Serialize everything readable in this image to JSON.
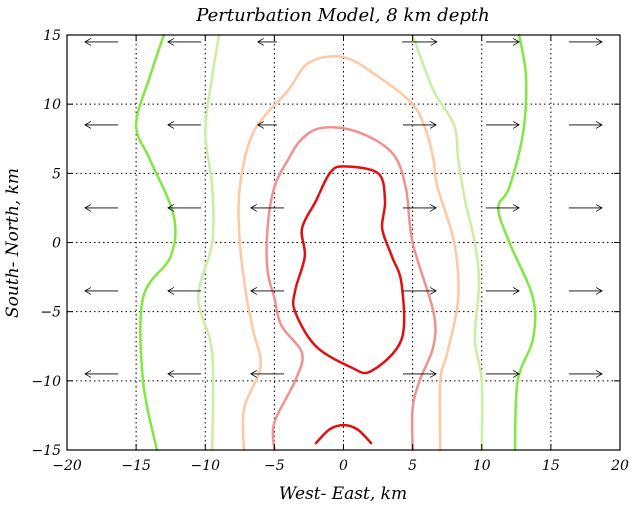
{
  "chart_data": {
    "type": "contour",
    "title": "Perturbation Model, 8 km depth",
    "xlabel": "West- East, km",
    "ylabel": "South- North, km",
    "xlim": [
      -20,
      20
    ],
    "ylim": [
      -15,
      15
    ],
    "xticks": [
      -20,
      -15,
      -10,
      -5,
      0,
      5,
      10,
      15,
      20
    ],
    "yticks": [
      -15,
      -10,
      -5,
      0,
      5,
      10,
      15
    ],
    "xtick_labels": [
      "−20",
      "−15",
      "−10",
      "−5",
      "0",
      "5",
      "10",
      "15",
      "20"
    ],
    "ytick_labels": [
      "−15",
      "−10",
      "−5",
      "0",
      "5",
      "10",
      "15"
    ],
    "grid": true,
    "contours": [
      {
        "color": "#e01010",
        "points": [
          [
            0,
            5.5
          ],
          [
            2.5,
            5
          ],
          [
            3,
            3
          ],
          [
            2.8,
            1
          ],
          [
            3.5,
            -1
          ],
          [
            4.2,
            -3
          ],
          [
            4.2,
            -7
          ],
          [
            2,
            -9.3
          ],
          [
            0.5,
            -9
          ],
          [
            -2,
            -7.5
          ],
          [
            -3.5,
            -5
          ],
          [
            -3.5,
            -3.5
          ],
          [
            -2.8,
            -1
          ],
          [
            -3,
            1
          ],
          [
            -2,
            3
          ],
          [
            -1,
            5
          ],
          [
            0,
            5.5
          ]
        ]
      },
      {
        "color": "#e01010",
        "points": [
          [
            -2,
            -14.5
          ],
          [
            -1,
            -13.5
          ],
          [
            0,
            -13.2
          ],
          [
            1,
            -13.5
          ],
          [
            2,
            -14.5
          ]
        ]
      },
      {
        "color": "#f09090",
        "points": [
          [
            -5,
            -15
          ],
          [
            -5,
            -13
          ],
          [
            -3.5,
            -10
          ],
          [
            -3,
            -8
          ],
          [
            -4.5,
            -6
          ],
          [
            -5,
            -4
          ],
          [
            -5.5,
            -2
          ],
          [
            -5.5,
            1
          ],
          [
            -5,
            4
          ],
          [
            -4,
            6
          ],
          [
            -3,
            7.5
          ],
          [
            -1.5,
            8.3
          ],
          [
            1,
            8
          ],
          [
            3.5,
            6.5
          ],
          [
            4.5,
            4
          ],
          [
            5,
            0
          ],
          [
            6.5,
            -5
          ],
          [
            6.5,
            -7.5
          ],
          [
            5.5,
            -10
          ],
          [
            5,
            -12
          ],
          [
            5,
            -15
          ]
        ]
      },
      {
        "color": "#ffc8a0",
        "points": [
          [
            -7.2,
            -15
          ],
          [
            -7.2,
            -12
          ],
          [
            -6,
            -9
          ],
          [
            -6.5,
            -6.5
          ],
          [
            -7,
            -4
          ],
          [
            -7.5,
            0
          ],
          [
            -7.5,
            4
          ],
          [
            -6.5,
            8
          ],
          [
            -4,
            11
          ],
          [
            -2.5,
            13
          ],
          [
            0,
            13.4
          ],
          [
            2.5,
            12
          ],
          [
            5,
            10
          ],
          [
            6,
            8
          ],
          [
            6.5,
            6
          ],
          [
            6.8,
            4
          ],
          [
            8,
            0
          ],
          [
            8.3,
            -4
          ],
          [
            7.5,
            -8
          ],
          [
            7,
            -10
          ],
          [
            7,
            -15
          ]
        ]
      },
      {
        "color": "#c8f0a0",
        "points": [
          [
            -9,
            15
          ],
          [
            -9.5,
            12
          ],
          [
            -10,
            8
          ],
          [
            -9.5,
            4
          ],
          [
            -9.5,
            0
          ],
          [
            -10.5,
            -4
          ],
          [
            -9.5,
            -8
          ],
          [
            -9.5,
            -15
          ]
        ]
      },
      {
        "color": "#c8f0a0",
        "points": [
          [
            5,
            15
          ],
          [
            6.5,
            11
          ],
          [
            8,
            8.5
          ],
          [
            8.3,
            6
          ],
          [
            8.8,
            3
          ],
          [
            9.5,
            0
          ],
          [
            9.8,
            -3
          ],
          [
            9.5,
            -7
          ],
          [
            10,
            -10
          ],
          [
            10,
            -15
          ]
        ]
      },
      {
        "color": "#80e840",
        "points": [
          [
            -13,
            15
          ],
          [
            -14,
            12
          ],
          [
            -15,
            8.5
          ],
          [
            -14,
            6
          ],
          [
            -12.3,
            2
          ],
          [
            -12.5,
            -1
          ],
          [
            -14.5,
            -4
          ],
          [
            -14.5,
            -10
          ],
          [
            -13.5,
            -15
          ]
        ]
      },
      {
        "color": "#80e840",
        "points": [
          [
            12.7,
            15
          ],
          [
            13.2,
            12
          ],
          [
            13,
            8
          ],
          [
            12,
            4
          ],
          [
            11.2,
            2.5
          ],
          [
            12,
            0
          ],
          [
            13.7,
            -4
          ],
          [
            13.7,
            -7
          ],
          [
            12.6,
            -10
          ],
          [
            12.4,
            -15
          ]
        ]
      }
    ],
    "vectors": [
      {
        "x": -17.5,
        "y": 14.5,
        "dx": -2.4
      },
      {
        "x": -11.5,
        "y": 14.5,
        "dx": -2.4
      },
      {
        "x": -5.5,
        "y": 14.5,
        "dx": -1.4
      },
      {
        "x": 5.5,
        "y": 14.5,
        "dx": 2.5
      },
      {
        "x": 11.5,
        "y": 14.5,
        "dx": 2.4
      },
      {
        "x": 17.5,
        "y": 14.5,
        "dx": 2.4
      },
      {
        "x": -17.5,
        "y": 8.5,
        "dx": -2.4
      },
      {
        "x": -11.5,
        "y": 8.5,
        "dx": -2.4
      },
      {
        "x": -5.5,
        "y": 8.5,
        "dx": -1.4
      },
      {
        "x": 5.5,
        "y": 8.5,
        "dx": 2.4
      },
      {
        "x": 11.5,
        "y": 8.5,
        "dx": 2.4
      },
      {
        "x": 17.5,
        "y": 8.5,
        "dx": 2.4
      },
      {
        "x": -17.5,
        "y": 2.5,
        "dx": -2.4
      },
      {
        "x": -11.5,
        "y": 2.5,
        "dx": -2.4
      },
      {
        "x": -5.5,
        "y": 2.5,
        "dx": -2.4
      },
      {
        "x": 5.5,
        "y": 2.5,
        "dx": 2.4
      },
      {
        "x": 11.5,
        "y": 2.5,
        "dx": 2.4
      },
      {
        "x": 17.5,
        "y": 2.5,
        "dx": 2.4
      },
      {
        "x": -17.5,
        "y": -3.5,
        "dx": -2.4
      },
      {
        "x": -11.5,
        "y": -3.5,
        "dx": -2.4
      },
      {
        "x": -5.5,
        "y": -3.5,
        "dx": -2.4
      },
      {
        "x": 5.5,
        "y": -3.5,
        "dx": 2.4
      },
      {
        "x": 11.5,
        "y": -3.5,
        "dx": 2.4
      },
      {
        "x": 17.5,
        "y": -3.5,
        "dx": 2.4
      },
      {
        "x": -17.5,
        "y": -9.5,
        "dx": -2.4
      },
      {
        "x": -11.5,
        "y": -9.5,
        "dx": -2.4
      },
      {
        "x": -5.5,
        "y": -9.5,
        "dx": -2.4
      },
      {
        "x": 5.5,
        "y": -9.5,
        "dx": 2.4
      },
      {
        "x": 11.5,
        "y": -9.5,
        "dx": 2.4
      },
      {
        "x": 17.5,
        "y": -9.5,
        "dx": 2.4
      }
    ]
  }
}
